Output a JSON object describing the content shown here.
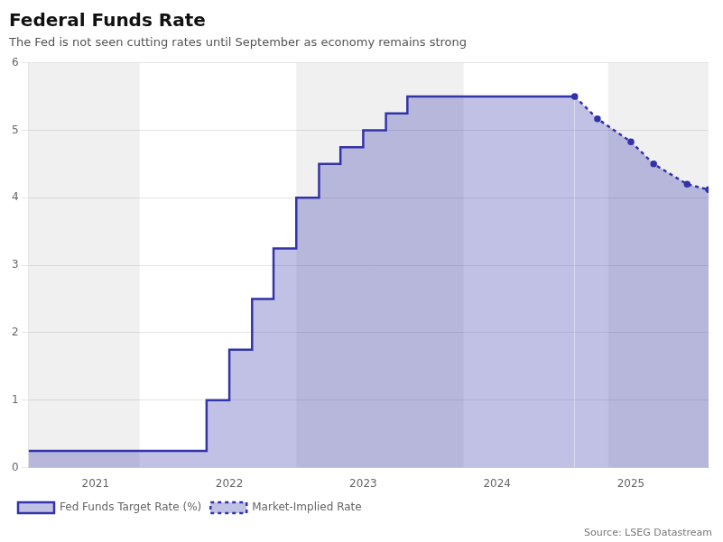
{
  "chart_data": {
    "type": "line",
    "title": "Federal Funds Rate",
    "subtitle": "The Fed is not seen cutting rates until September as economy remains strong",
    "source": "Source: LSEG Datastream",
    "xlim": [
      2020.5,
      2025.58
    ],
    "xticks": [
      2021,
      2022,
      2023,
      2024,
      2025
    ],
    "ylim": [
      0,
      6
    ],
    "yticks": [
      0,
      1,
      2,
      3,
      4,
      5,
      6
    ],
    "grid": "y",
    "legend": "lower left",
    "shaded_regions": [
      [
        2020.5,
        2021.33
      ],
      [
        2022.5,
        2023.75
      ],
      [
        2024.83,
        2025.58
      ]
    ],
    "series": [
      {
        "name": "Fed Funds Target Rate (%)",
        "color": "#3333AA",
        "line_style": "solid",
        "x": [
          2020.5,
          2021.25,
          2021.25,
          2021.83,
          2021.83,
          2022.0,
          2022.0,
          2022.17,
          2022.17,
          2022.33,
          2022.33,
          2022.5,
          2022.5,
          2022.67,
          2022.67,
          2022.83,
          2022.83,
          2023.0,
          2023.0,
          2023.17,
          2023.17,
          2023.33,
          2023.33,
          2023.5,
          2023.5,
          2023.67,
          2024.58
        ],
        "values": [
          0.25,
          0.25,
          0.25,
          0.25,
          1.0,
          1.0,
          1.75,
          1.75,
          2.5,
          2.5,
          3.25,
          3.25,
          4.0,
          4.0,
          4.5,
          4.5,
          4.75,
          4.75,
          5.0,
          5.0,
          5.25,
          5.25,
          5.5,
          5.5,
          5.5,
          5.5,
          5.5
        ]
      },
      {
        "name": "Market-Implied Rate",
        "color": "#3333AA",
        "line_style": "dotted",
        "marker": "circle",
        "x": [
          2024.58,
          2024.75,
          2025.0,
          2025.17,
          2025.42,
          2025.58
        ],
        "values": [
          5.5,
          5.17,
          4.83,
          4.5,
          4.2,
          4.12
        ]
      }
    ]
  }
}
